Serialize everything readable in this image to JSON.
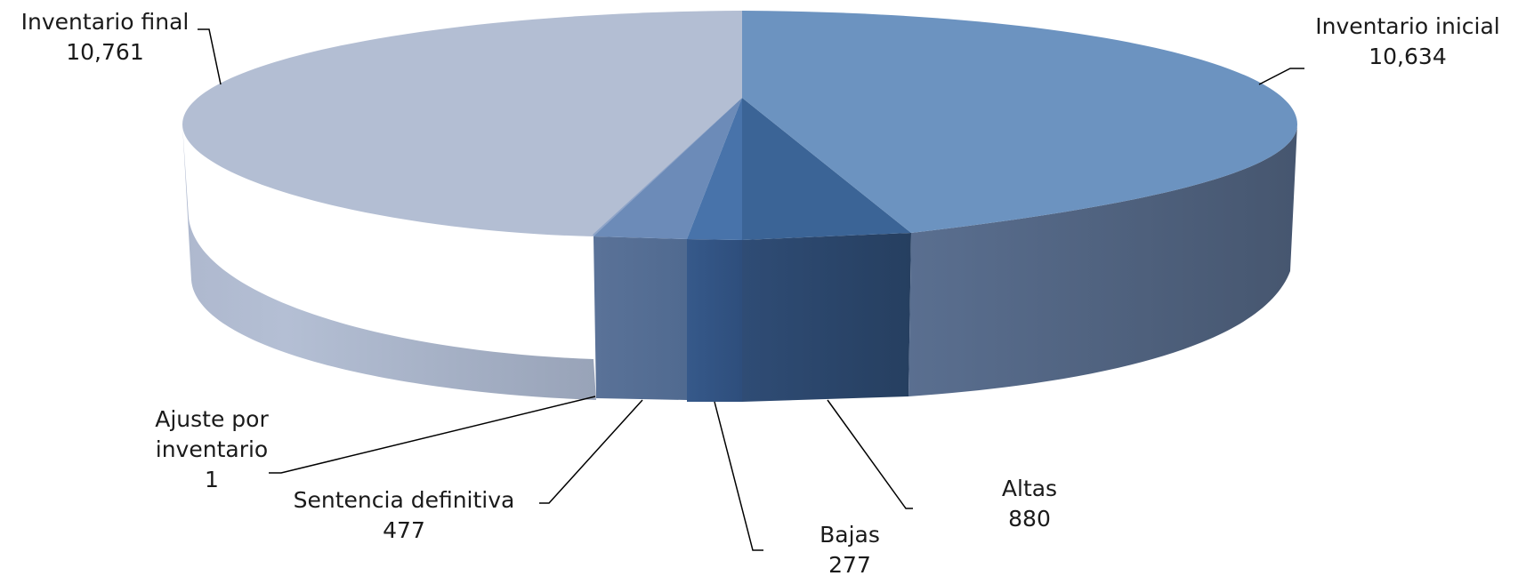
{
  "chart_data": {
    "type": "pie",
    "style": "3d",
    "legend": "none",
    "slices": [
      {
        "label": "Inventario inicial",
        "value": 10634,
        "display": "10,634",
        "color": "#6c93c0"
      },
      {
        "label": "Altas",
        "value": 880,
        "display": "880",
        "color": "#3b6496"
      },
      {
        "label": "Bajas",
        "value": 277,
        "display": "277",
        "color": "#4873aa"
      },
      {
        "label": "Sentencia definitiva",
        "value": 477,
        "display": "477",
        "color": "#6c8bb8"
      },
      {
        "label": "Ajuste por inventario",
        "label_lines": [
          "Ajuste por",
          "inventario"
        ],
        "value": 1,
        "display": "1",
        "color": "#8ea4c8"
      },
      {
        "label": "Inventario final",
        "value": 10761,
        "display": "10,761",
        "color": "#b3bed3"
      }
    ]
  }
}
